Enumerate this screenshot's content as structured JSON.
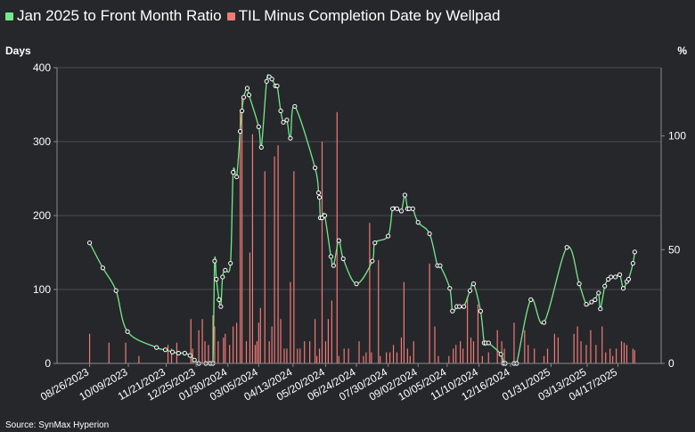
{
  "chart_data": {
    "type": "bar+line",
    "title": "Jan 2025 to Front Month Ratio  TIL Minus Completion Date by Wellpad",
    "legend": [
      {
        "label": "Jan 2025 to Front Month Ratio",
        "color": "#74e88c"
      },
      {
        "label": "TIL Minus Completion Date by Wellpad",
        "color": "#f07a76"
      }
    ],
    "ylabel_left": "Days",
    "ylabel_right": "%",
    "ylim_left": [
      0,
      400
    ],
    "ylim_right": [
      0,
      130
    ],
    "yticks_left": [
      0,
      100,
      200,
      300,
      400
    ],
    "yticks_right": [
      0,
      50,
      100
    ],
    "xlim": [
      "2023-07-20",
      "2025-06-05"
    ],
    "xticks": [
      {
        "date": "2023-08-26",
        "label": "08/26/2023"
      },
      {
        "date": "2023-10-09",
        "label": "10/09/2023"
      },
      {
        "date": "2023-11-21",
        "label": "11/21/2023"
      },
      {
        "date": "2023-12-25",
        "label": "12/25/2023"
      },
      {
        "date": "2024-01-30",
        "label": "01/30/2024"
      },
      {
        "date": "2024-03-05",
        "label": "03/05/2024"
      },
      {
        "date": "2024-04-13",
        "label": "04/13/2024"
      },
      {
        "date": "2024-05-20",
        "label": "05/20/2024"
      },
      {
        "date": "2024-06-24",
        "label": "06/24/2024"
      },
      {
        "date": "2024-07-30",
        "label": "07/30/2024"
      },
      {
        "date": "2024-09-02",
        "label": "09/02/2024"
      },
      {
        "date": "2024-10-05",
        "label": "10/05/2024"
      },
      {
        "date": "2024-11-10",
        "label": "11/10/2024"
      },
      {
        "date": "2024-12-16",
        "label": "12/16/2024"
      },
      {
        "date": "2025-01-31",
        "label": "01/31/2025"
      },
      {
        "date": "2025-03-13",
        "label": "03/13/2025"
      },
      {
        "date": "2025-04-17",
        "label": "04/17/2025"
      }
    ],
    "grid": true,
    "line_series": {
      "name": "Jan 2025 to Front Month Ratio",
      "axis": "right",
      "points": [
        [
          "2023-08-26",
          53
        ],
        [
          "2023-09-10",
          42
        ],
        [
          "2023-09-25",
          32
        ],
        [
          "2023-10-08",
          14
        ],
        [
          "2023-11-10",
          7
        ],
        [
          "2023-11-20",
          6
        ],
        [
          "2023-11-28",
          5
        ],
        [
          "2023-12-05",
          4.5
        ],
        [
          "2023-12-12",
          4.5
        ],
        [
          "2023-12-18",
          3.5
        ],
        [
          "2023-12-23",
          1.5
        ],
        [
          "2023-12-28",
          0
        ],
        [
          "2024-01-05",
          0
        ],
        [
          "2024-01-10",
          0
        ],
        [
          "2024-01-13",
          0
        ],
        [
          "2024-01-15",
          45
        ],
        [
          "2024-01-17",
          37
        ],
        [
          "2024-01-20",
          28
        ],
        [
          "2024-01-22",
          25
        ],
        [
          "2024-01-24",
          38
        ],
        [
          "2024-01-27",
          41
        ],
        [
          "2024-02-02",
          44
        ],
        [
          "2024-02-05",
          84
        ],
        [
          "2024-02-09",
          82
        ],
        [
          "2024-02-13",
          102
        ],
        [
          "2024-02-15",
          111
        ],
        [
          "2024-02-17",
          117
        ],
        [
          "2024-02-21",
          121
        ],
        [
          "2024-02-23",
          118
        ],
        [
          "2024-03-05",
          104
        ],
        [
          "2024-03-08",
          95
        ],
        [
          "2024-03-14",
          124
        ],
        [
          "2024-03-17",
          126
        ],
        [
          "2024-03-20",
          125
        ],
        [
          "2024-03-24",
          122
        ],
        [
          "2024-03-26",
          122
        ],
        [
          "2024-03-30",
          111
        ],
        [
          "2024-04-02",
          106
        ],
        [
          "2024-04-06",
          107
        ],
        [
          "2024-04-10",
          99
        ],
        [
          "2024-04-15",
          113
        ],
        [
          "2024-05-08",
          86
        ],
        [
          "2024-05-12",
          75
        ],
        [
          "2024-05-13",
          73
        ],
        [
          "2024-05-14",
          64
        ],
        [
          "2024-05-16",
          64
        ],
        [
          "2024-05-19",
          65
        ],
        [
          "2024-05-26",
          47
        ],
        [
          "2024-05-29",
          43
        ],
        [
          "2024-06-04",
          54
        ],
        [
          "2024-06-09",
          46
        ],
        [
          "2024-06-24",
          35
        ],
        [
          "2024-07-12",
          45
        ],
        [
          "2024-07-15",
          53
        ],
        [
          "2024-07-30",
          56
        ],
        [
          "2024-08-04",
          68
        ],
        [
          "2024-08-09",
          68
        ],
        [
          "2024-08-14",
          67
        ],
        [
          "2024-08-18",
          74
        ],
        [
          "2024-08-21",
          68
        ],
        [
          "2024-08-23",
          68
        ],
        [
          "2024-08-27",
          68
        ],
        [
          "2024-09-02",
          62
        ],
        [
          "2024-09-15",
          57
        ],
        [
          "2024-09-24",
          43
        ],
        [
          "2024-09-27",
          43
        ],
        [
          "2024-10-08",
          33
        ],
        [
          "2024-10-11",
          23
        ],
        [
          "2024-10-16",
          25
        ],
        [
          "2024-10-19",
          25
        ],
        [
          "2024-10-24",
          25
        ],
        [
          "2024-10-31",
          32
        ],
        [
          "2024-11-04",
          35
        ],
        [
          "2024-11-12",
          23
        ],
        [
          "2024-11-16",
          9
        ],
        [
          "2024-11-18",
          9
        ],
        [
          "2024-11-21",
          9
        ],
        [
          "2024-12-05",
          4
        ],
        [
          "2024-12-08",
          0
        ],
        [
          "2024-12-10",
          0
        ],
        [
          "2024-12-20",
          0
        ],
        [
          "2024-12-23",
          0
        ],
        [
          "2025-01-08",
          28
        ],
        [
          "2025-01-23",
          18
        ],
        [
          "2025-02-18",
          51
        ],
        [
          "2025-03-04",
          35
        ],
        [
          "2025-03-12",
          26
        ],
        [
          "2025-03-18",
          27
        ],
        [
          "2025-03-22",
          28
        ],
        [
          "2025-03-26",
          31
        ],
        [
          "2025-03-28",
          24
        ],
        [
          "2025-04-02",
          34
        ],
        [
          "2025-04-06",
          37
        ],
        [
          "2025-04-09",
          38
        ],
        [
          "2025-04-14",
          38
        ],
        [
          "2025-04-19",
          39
        ],
        [
          "2025-04-23",
          33
        ],
        [
          "2025-04-27",
          36
        ],
        [
          "2025-04-29",
          37
        ],
        [
          "2025-05-04",
          44
        ],
        [
          "2025-05-06",
          49
        ]
      ]
    },
    "bar_series": {
      "name": "TIL Minus Completion Date by Wellpad",
      "axis": "left",
      "points": [
        [
          "2023-08-26",
          40
        ],
        [
          "2023-09-17",
          28
        ],
        [
          "2023-10-06",
          28
        ],
        [
          "2023-10-21",
          10
        ],
        [
          "2023-11-23",
          25
        ],
        [
          "2023-11-27",
          20
        ],
        [
          "2023-12-03",
          28
        ],
        [
          "2023-12-19",
          60
        ],
        [
          "2023-12-21",
          20
        ],
        [
          "2023-12-28",
          45
        ],
        [
          "2024-01-01",
          60
        ],
        [
          "2024-01-04",
          30
        ],
        [
          "2024-01-08",
          25
        ],
        [
          "2024-01-13",
          65
        ],
        [
          "2024-01-15",
          50
        ],
        [
          "2024-01-19",
          30
        ],
        [
          "2024-01-25",
          35
        ],
        [
          "2024-01-27",
          40
        ],
        [
          "2024-02-01",
          25
        ],
        [
          "2024-02-05",
          50
        ],
        [
          "2024-02-09",
          55
        ],
        [
          "2024-02-13",
          340
        ],
        [
          "2024-02-15",
          360
        ],
        [
          "2024-02-20",
          30
        ],
        [
          "2024-02-24",
          150
        ],
        [
          "2024-02-27",
          310
        ],
        [
          "2024-03-01",
          25
        ],
        [
          "2024-03-03",
          30
        ],
        [
          "2024-03-05",
          55
        ],
        [
          "2024-03-07",
          75
        ],
        [
          "2024-03-12",
          260
        ],
        [
          "2024-03-17",
          30
        ],
        [
          "2024-03-20",
          50
        ],
        [
          "2024-03-23",
          280
        ],
        [
          "2024-03-27",
          295
        ],
        [
          "2024-03-30",
          60
        ],
        [
          "2024-04-03",
          20
        ],
        [
          "2024-04-06",
          20
        ],
        [
          "2024-04-10",
          110
        ],
        [
          "2024-04-14",
          260
        ],
        [
          "2024-04-18",
          20
        ],
        [
          "2024-04-21",
          20
        ],
        [
          "2024-04-26",
          30
        ],
        [
          "2024-05-02",
          30
        ],
        [
          "2024-05-08",
          60
        ],
        [
          "2024-05-10",
          10
        ],
        [
          "2024-05-13",
          20
        ],
        [
          "2024-05-16",
          300
        ],
        [
          "2024-05-20",
          30
        ],
        [
          "2024-05-23",
          60
        ],
        [
          "2024-05-27",
          85
        ],
        [
          "2024-06-02",
          340
        ],
        [
          "2024-06-04",
          10
        ],
        [
          "2024-06-10",
          20
        ],
        [
          "2024-06-15",
          20
        ],
        [
          "2024-06-27",
          30
        ],
        [
          "2024-07-02",
          10
        ],
        [
          "2024-07-05",
          15
        ],
        [
          "2024-07-09",
          190
        ],
        [
          "2024-07-11",
          15
        ],
        [
          "2024-07-19",
          140
        ],
        [
          "2024-07-21",
          10
        ],
        [
          "2024-07-28",
          15
        ],
        [
          "2024-08-01",
          15
        ],
        [
          "2024-08-05",
          25
        ],
        [
          "2024-08-09",
          15
        ],
        [
          "2024-08-14",
          35
        ],
        [
          "2024-08-17",
          110
        ],
        [
          "2024-08-21",
          20
        ],
        [
          "2024-08-24",
          10
        ],
        [
          "2024-08-28",
          30
        ],
        [
          "2024-09-15",
          135
        ],
        [
          "2024-09-21",
          50
        ],
        [
          "2024-09-25",
          10
        ],
        [
          "2024-10-07",
          10
        ],
        [
          "2024-10-12",
          20
        ],
        [
          "2024-10-15",
          25
        ],
        [
          "2024-10-20",
          30
        ],
        [
          "2024-10-23",
          20
        ],
        [
          "2024-10-28",
          90
        ],
        [
          "2024-11-01",
          35
        ],
        [
          "2024-11-04",
          30
        ],
        [
          "2024-11-09",
          80
        ],
        [
          "2024-11-14",
          10
        ],
        [
          "2024-11-21",
          15
        ],
        [
          "2024-12-01",
          45
        ],
        [
          "2024-12-06",
          30
        ],
        [
          "2024-12-09",
          20
        ],
        [
          "2024-12-20",
          55
        ],
        [
          "2025-01-01",
          45
        ],
        [
          "2025-01-05",
          25
        ],
        [
          "2025-01-12",
          20
        ],
        [
          "2025-01-23",
          10
        ],
        [
          "2025-01-27",
          20
        ],
        [
          "2025-02-04",
          40
        ],
        [
          "2025-02-08",
          35
        ],
        [
          "2025-02-26",
          40
        ],
        [
          "2025-03-02",
          50
        ],
        [
          "2025-03-06",
          30
        ],
        [
          "2025-03-12",
          25
        ],
        [
          "2025-03-17",
          45
        ],
        [
          "2025-03-23",
          25
        ],
        [
          "2025-03-30",
          50
        ],
        [
          "2025-04-03",
          15
        ],
        [
          "2025-04-08",
          20
        ],
        [
          "2025-04-11",
          10
        ],
        [
          "2025-04-15",
          20
        ],
        [
          "2025-04-21",
          30
        ],
        [
          "2025-04-24",
          28
        ],
        [
          "2025-04-27",
          25
        ],
        [
          "2025-05-04",
          20
        ],
        [
          "2025-05-06",
          18
        ]
      ]
    },
    "source": "Source: SynMax Hyperion"
  }
}
